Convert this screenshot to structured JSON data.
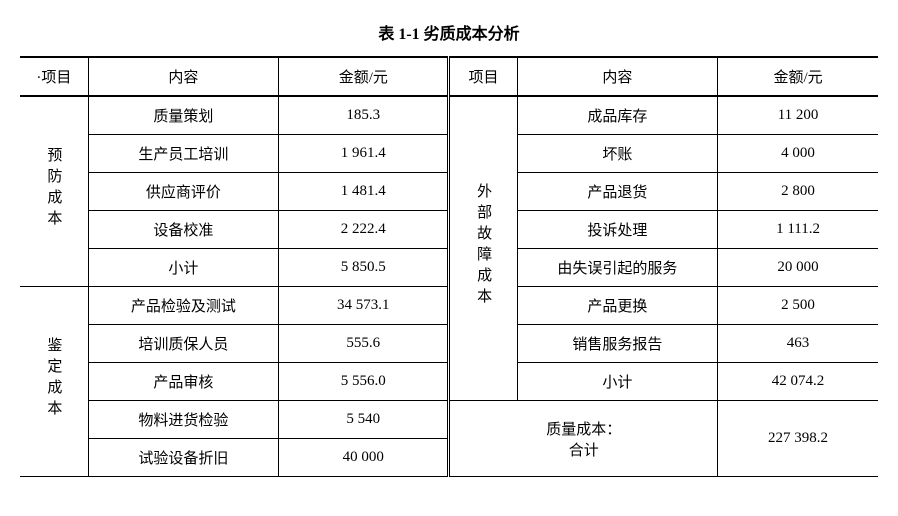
{
  "title": "表 1-1  劣质成本分析",
  "headers": {
    "proj": "·项目",
    "content": "内容",
    "amount": "金额/元",
    "proj2": "项目",
    "content2": "内容",
    "amount2": "金额/元"
  },
  "left": {
    "cat1": {
      "label": "预防成本"
    },
    "cat2": {
      "label": "鉴定成本"
    },
    "rows": [
      {
        "content": "质量策划",
        "amount": "185.3"
      },
      {
        "content": "生产员工培训",
        "amount": "1 961.4"
      },
      {
        "content": "供应商评价",
        "amount": "1 481.4"
      },
      {
        "content": "设备校准",
        "amount": "2 222.4"
      },
      {
        "content": "小计",
        "amount": "5 850.5"
      },
      {
        "content": "产品检验及测试",
        "amount": "34 573.1"
      },
      {
        "content": "培训质保人员",
        "amount": "555.6"
      },
      {
        "content": "产品审核",
        "amount": "5 556.0"
      },
      {
        "content": "物料进货检验",
        "amount": "5 540"
      },
      {
        "content": "试验设备折旧",
        "amount": "40 000"
      }
    ]
  },
  "right": {
    "cat1": {
      "label": "外部故障成本"
    },
    "rows": [
      {
        "content": "成品库存",
        "amount": "11 200"
      },
      {
        "content": "坏账",
        "amount": "4 000"
      },
      {
        "content": "产品退货",
        "amount": "2 800"
      },
      {
        "content": "投诉处理",
        "amount": "1 111.2"
      },
      {
        "content": "由失误引起的服务",
        "amount": "20 000"
      },
      {
        "content": "产品更换",
        "amount": "2 500"
      },
      {
        "content": "销售服务报告",
        "amount": "463"
      },
      {
        "content": "小计",
        "amount": "42 074.2"
      }
    ],
    "total": {
      "label1": "质量成本：",
      "label2": "合计",
      "amount": "227 398.2"
    }
  }
}
